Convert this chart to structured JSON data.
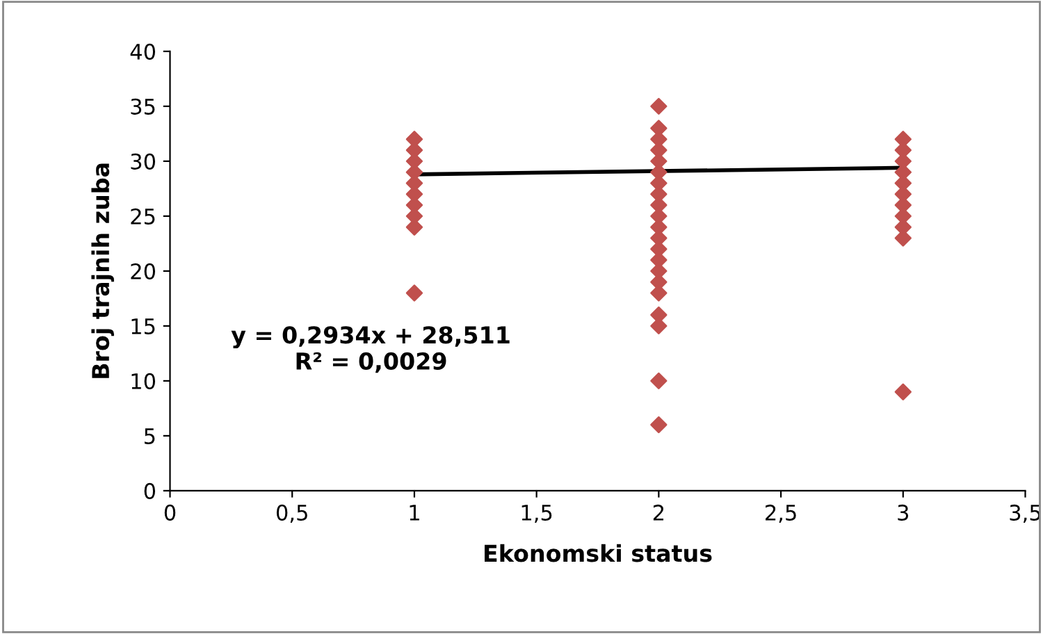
{
  "chart_data": {
    "type": "scatter",
    "xlabel": "Ekonomski status",
    "ylabel": "Broj trajnih zuba",
    "marker": "diamond",
    "grid": false,
    "legend": false,
    "series": [
      {
        "color": "#c0504d",
        "x": [
          1,
          1,
          1,
          1,
          1,
          1,
          1,
          1,
          1,
          1,
          2,
          2,
          2,
          2,
          2,
          2,
          2,
          2,
          2,
          2,
          2,
          2,
          2,
          2,
          2,
          2,
          2,
          2,
          2,
          2,
          2,
          3,
          3,
          3,
          3,
          3,
          3,
          3,
          3,
          3,
          3,
          3
        ],
        "values": [
          32,
          31,
          30,
          29,
          28,
          27,
          26,
          25,
          24,
          18,
          35,
          33,
          32,
          31,
          30,
          29,
          28,
          27,
          26,
          25,
          24,
          23,
          22,
          21,
          20,
          19,
          18,
          16,
          15,
          10,
          6,
          32,
          31,
          30,
          29,
          28,
          27,
          26,
          25,
          24,
          23,
          9
        ]
      },
      {
        "type": "line",
        "color": "#000000",
        "x": [
          1,
          3
        ],
        "values": [
          28.8,
          29.4
        ],
        "marker": "none"
      }
    ],
    "xlim": [
      0,
      3.5
    ],
    "xticks": [
      {
        "value": 0,
        "label": "0"
      },
      {
        "value": 0.5,
        "label": "0,5"
      },
      {
        "value": 1,
        "label": "1"
      },
      {
        "value": 1.5,
        "label": "1,5"
      },
      {
        "value": 2,
        "label": "2"
      },
      {
        "value": 2.5,
        "label": "2,5"
      },
      {
        "value": 3,
        "label": "3"
      },
      {
        "value": 3.5,
        "label": "3,5"
      }
    ],
    "ylim": [
      0,
      40
    ],
    "yticks": [
      0,
      5,
      10,
      15,
      20,
      25,
      30,
      35,
      40
    ],
    "annotations": [
      "y = 0,2934x + 28,511\nR² = 0,0029"
    ]
  }
}
